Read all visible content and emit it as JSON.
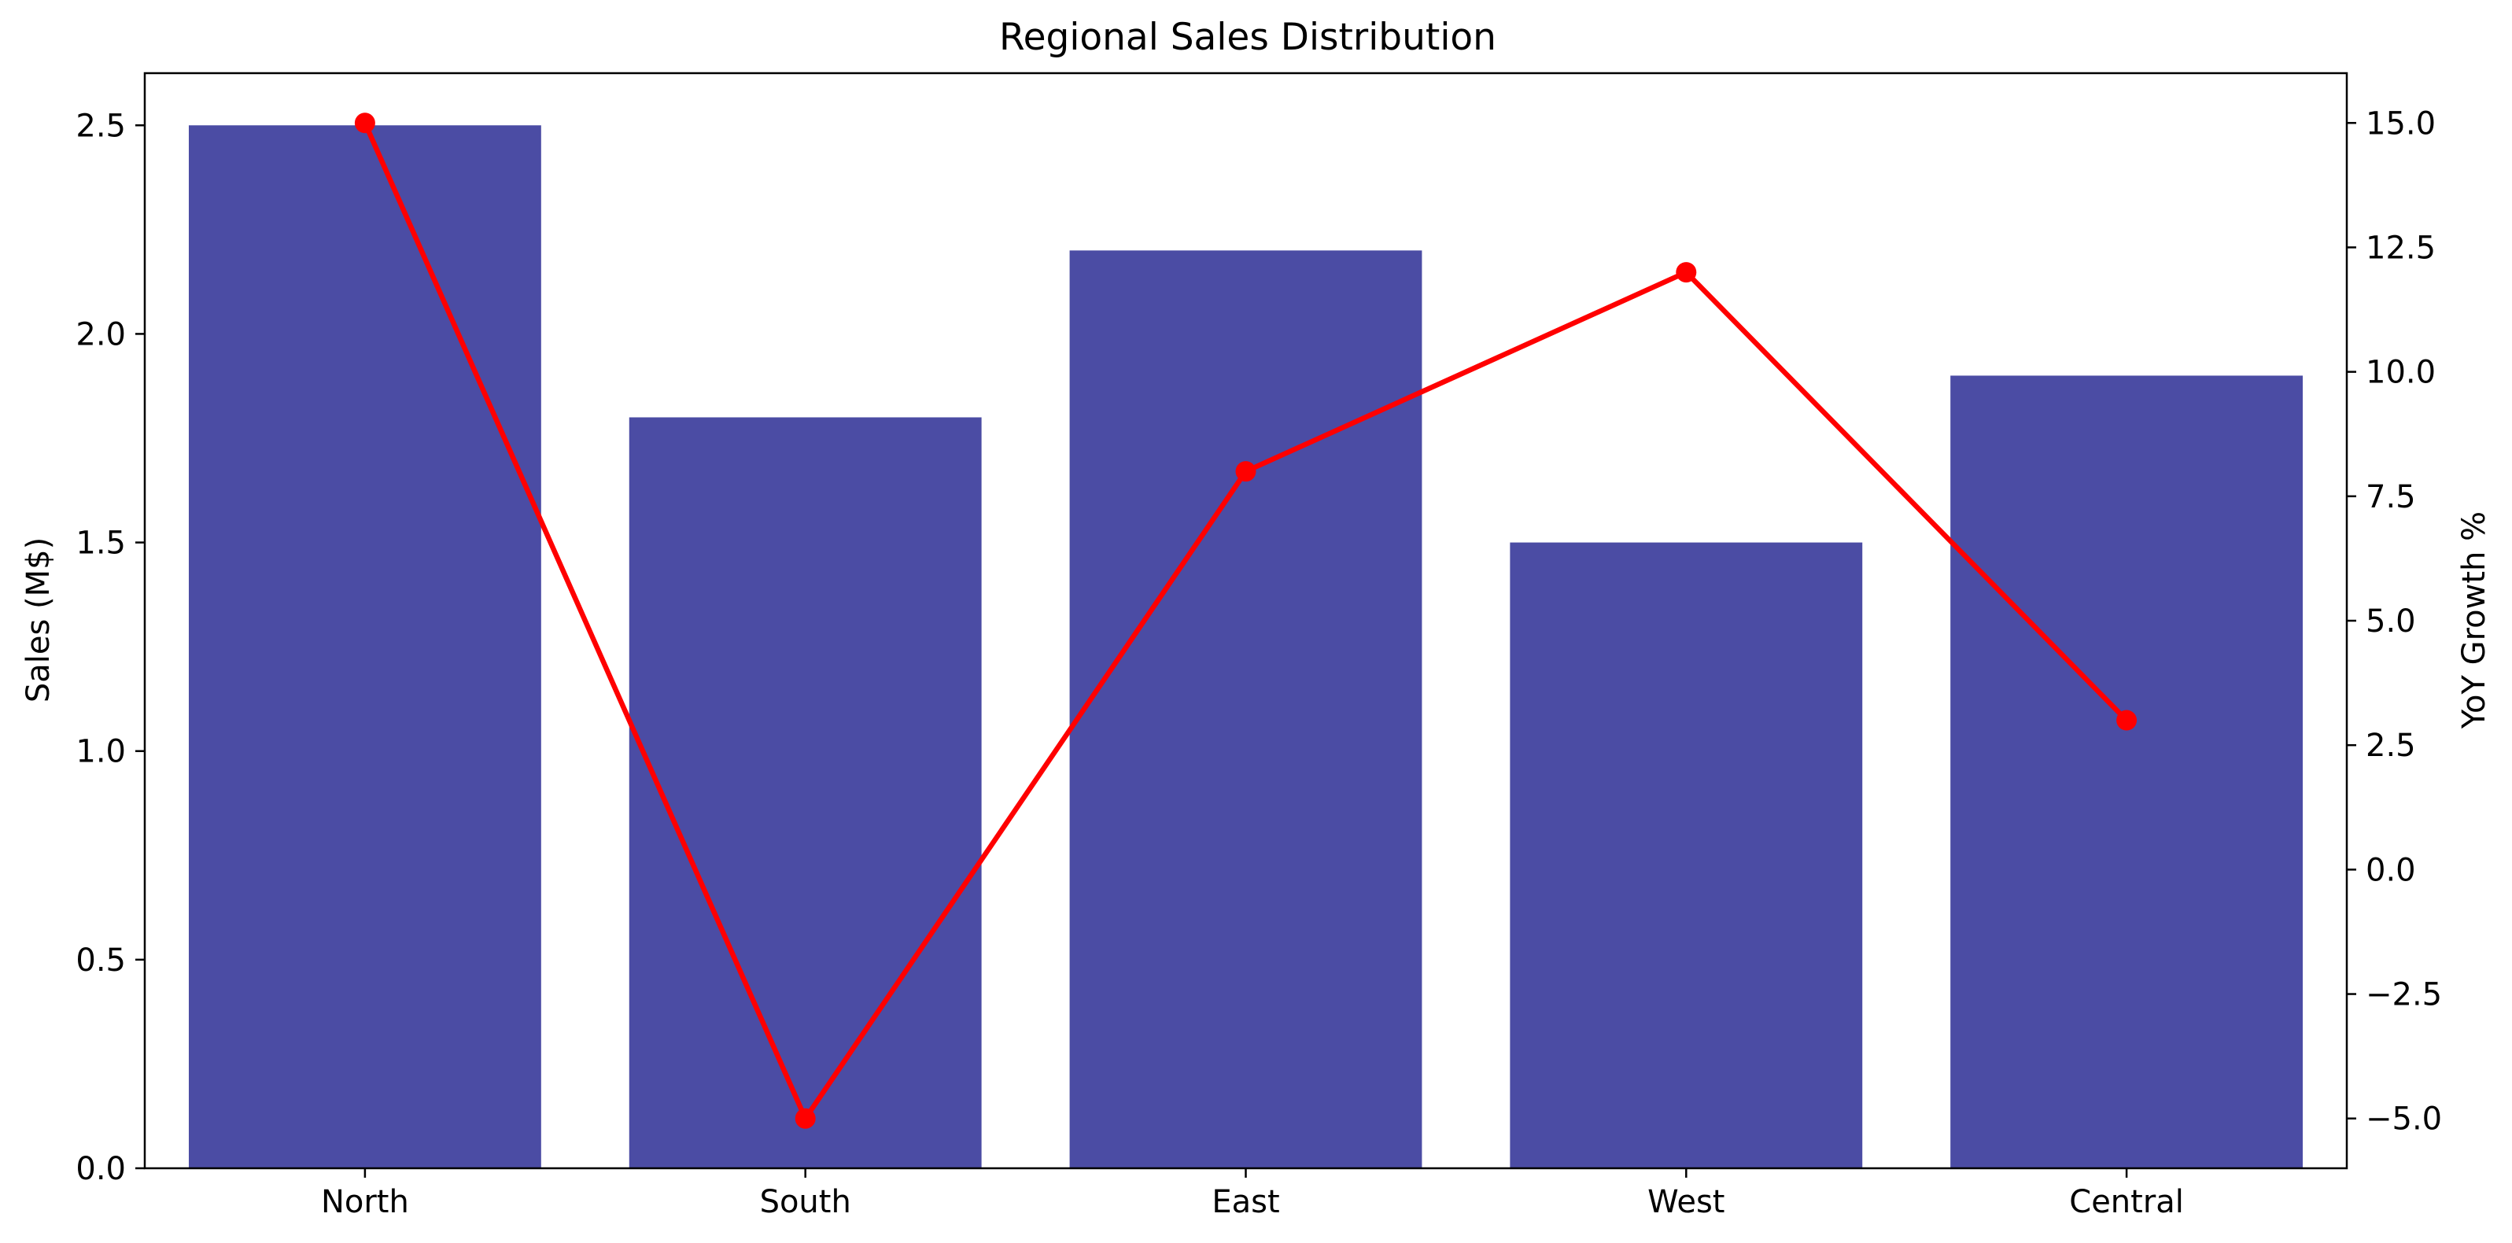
{
  "chart_data": {
    "type": "bar",
    "title": "Regional Sales Distribution",
    "categories": [
      "North",
      "South",
      "East",
      "West",
      "Central"
    ],
    "series": [
      {
        "type": "bar",
        "axis": "left",
        "values": [
          2.5,
          1.8,
          2.2,
          1.5,
          1.9
        ],
        "color": "#4b4ca4"
      },
      {
        "type": "line",
        "axis": "right",
        "values": [
          15.0,
          -5.0,
          8.0,
          12.0,
          3.0
        ],
        "color": "#ff0000",
        "marker": "circle"
      }
    ],
    "ylabel": "Sales (M$)",
    "ylim": [
      0,
      2.625
    ],
    "yticks": [
      0.0,
      0.5,
      1.0,
      1.5,
      2.0,
      2.5
    ],
    "ytick_labels": [
      "0.0",
      "0.5",
      "1.0",
      "1.5",
      "2.0",
      "2.5"
    ],
    "y2label": "YoY Growth %",
    "y2lim": [
      -6.0,
      16.0
    ],
    "y2ticks": [
      -5.0,
      -2.5,
      0.0,
      2.5,
      5.0,
      7.5,
      10.0,
      12.5,
      15.0
    ],
    "y2tick_labels": [
      "−5.0",
      "−2.5",
      "0.0",
      "2.5",
      "5.0",
      "7.5",
      "10.0",
      "12.5",
      "15.0"
    ],
    "grid": false,
    "legend": "none"
  }
}
